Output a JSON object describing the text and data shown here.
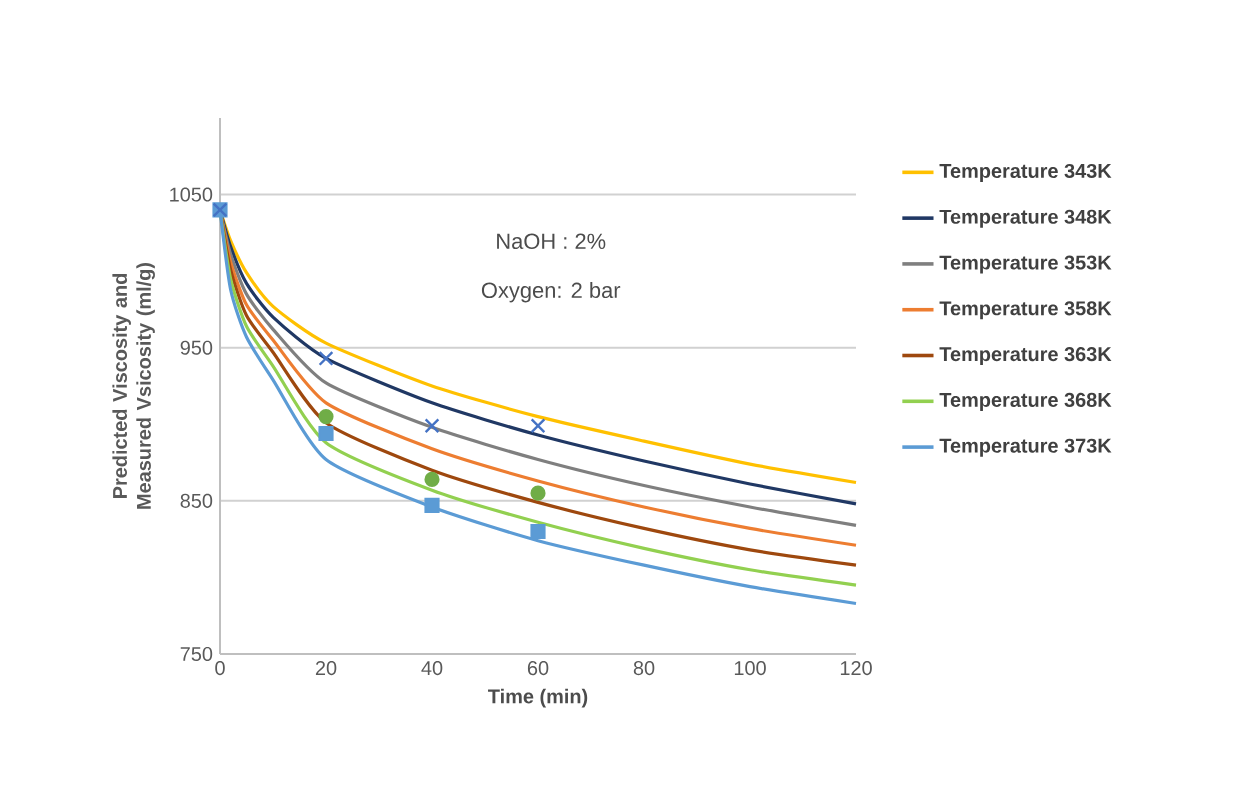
{
  "chart_data": {
    "type": "line",
    "xlabel": "Time (min)",
    "ylabel": "Predicted Viscosity and Measured Vsicosity (ml/g)",
    "annotations": [
      "NaOH : 2%",
      "Oxygen: 2 bar"
    ],
    "xlim": [
      0,
      120
    ],
    "xticks": [
      0,
      20,
      40,
      60,
      80,
      100,
      120
    ],
    "ylim": [
      750,
      1100
    ],
    "yticks": [
      750,
      850,
      950,
      1050
    ],
    "grid": "y",
    "legend": "right",
    "marker": "none",
    "line_style": "solid",
    "series": [
      {
        "name": "Temperature 343K",
        "color": "#ffc000",
        "x": [
          0,
          2,
          5,
          10,
          20,
          40,
          60,
          80,
          100,
          120
        ],
        "values": [
          1040,
          1020,
          999,
          977,
          953,
          925,
          905,
          889,
          874,
          862
        ]
      },
      {
        "name": "Temperature 348K",
        "color": "#203864",
        "x": [
          0,
          2,
          5,
          10,
          20,
          40,
          60,
          80,
          100,
          120
        ],
        "values": [
          1040,
          1016,
          992,
          970,
          943,
          914,
          893,
          876,
          861,
          848
        ]
      },
      {
        "name": "Temperature 353K",
        "color": "#7f7f7f",
        "x": [
          0,
          2,
          5,
          10,
          20,
          40,
          60,
          80,
          100,
          120
        ],
        "values": [
          1040,
          1011,
          985,
          962,
          927,
          898,
          877,
          860,
          846,
          834
        ]
      },
      {
        "name": "Temperature 358K",
        "color": "#ed7d31",
        "x": [
          0,
          2,
          5,
          10,
          20,
          40,
          60,
          80,
          100,
          120
        ],
        "values": [
          1040,
          1006,
          978,
          955,
          914,
          884,
          863,
          846,
          832,
          821
        ]
      },
      {
        "name": "Temperature 363K",
        "color": "#9e480e",
        "x": [
          0,
          2,
          5,
          10,
          20,
          40,
          60,
          80,
          100,
          120
        ],
        "values": [
          1040,
          1001,
          971,
          947,
          901,
          870,
          849,
          832,
          818,
          808
        ]
      },
      {
        "name": "Temperature 368K",
        "color": "#92d050",
        "x": [
          0,
          2,
          5,
          10,
          20,
          40,
          60,
          80,
          100,
          120
        ],
        "values": [
          1040,
          995,
          964,
          938,
          888,
          857,
          836,
          819,
          805,
          795
        ]
      },
      {
        "name": "Temperature 373K",
        "color": "#5b9bd5",
        "x": [
          0,
          2,
          5,
          10,
          20,
          40,
          60,
          80,
          100,
          120
        ],
        "values": [
          1040,
          988,
          957,
          929,
          877,
          846,
          824,
          808,
          794,
          783
        ]
      },
      {
        "type": "scatter",
        "marker": "circle",
        "color": "#70ad47",
        "x": [
          20,
          40,
          60
        ],
        "values": [
          905,
          864,
          855
        ]
      },
      {
        "type": "scatter",
        "marker": "square",
        "color": "#5b9bd5",
        "x": [
          0,
          20,
          40,
          60
        ],
        "values": [
          1040,
          894,
          847,
          830
        ]
      },
      {
        "type": "scatter",
        "marker": "cross",
        "color": "#4472c4",
        "x": [
          0,
          20,
          40,
          60
        ],
        "values": [
          1040,
          943,
          899,
          899
        ]
      }
    ]
  }
}
